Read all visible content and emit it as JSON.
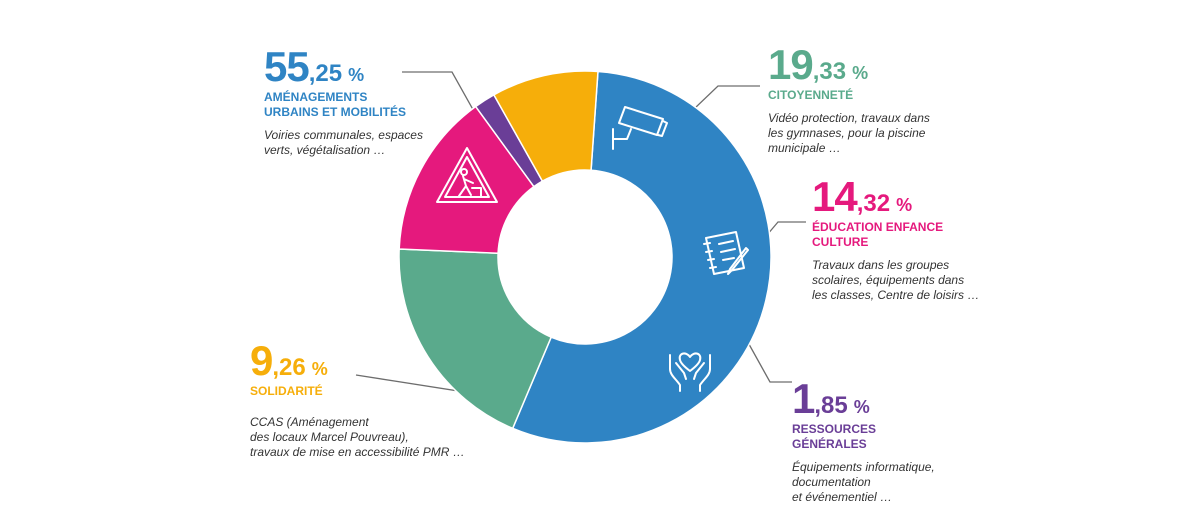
{
  "chart_data": {
    "type": "pie",
    "variant": "donut",
    "segments": [
      {
        "key": "amenagements",
        "value": 55.25,
        "int": "55",
        "dec": ",25",
        "sign": "%",
        "category": [
          "AMÉNAGEMENTS",
          "URBAINS ET MOBILITÉS"
        ],
        "description": [
          "Voiries communales, espaces",
          "verts, végétalisation …"
        ],
        "color": "#2f84c4",
        "icon": "road-works-icon"
      },
      {
        "key": "citoyennete",
        "value": 19.33,
        "int": "19",
        "dec": ",33",
        "sign": "%",
        "category": [
          "CITOYENNETÉ"
        ],
        "description": [
          "Vidéo protection, travaux dans",
          "les gymnases, pour la piscine",
          "municipale …"
        ],
        "color": "#5aaa8c",
        "icon": "security-camera-icon"
      },
      {
        "key": "education",
        "value": 14.32,
        "int": "14",
        "dec": ",32",
        "sign": "%",
        "category": [
          "ÉDUCATION ENFANCE",
          "CULTURE"
        ],
        "description": [
          "Travaux dans les groupes",
          "scolaires, équipements dans",
          "les classes, Centre de loisirs …"
        ],
        "color": "#e5197d",
        "icon": "notebook-pencil-icon"
      },
      {
        "key": "ressources",
        "value": 1.85,
        "int": "1",
        "dec": ",85",
        "sign": "%",
        "category": [
          "RESSOURCES",
          "GÉNÉRALES"
        ],
        "description": [
          "Équipements informatique,",
          "documentation",
          "et événementiel …"
        ],
        "color": "#6a3e97",
        "icon": ""
      },
      {
        "key": "solidarite",
        "value": 9.26,
        "int": "9",
        "dec": ",26",
        "sign": "%",
        "category": [
          "SOLIDARITÉ"
        ],
        "description": [
          "CCAS (Aménagement",
          "des locaux Marcel Pouvreau),",
          "travaux de mise en accessibilité PMR …"
        ],
        "color": "#f6ae0a",
        "icon": "heart-hands-icon"
      }
    ],
    "start_angle_deg": 4,
    "direction": "clockwise",
    "title": "",
    "legend": "none"
  }
}
